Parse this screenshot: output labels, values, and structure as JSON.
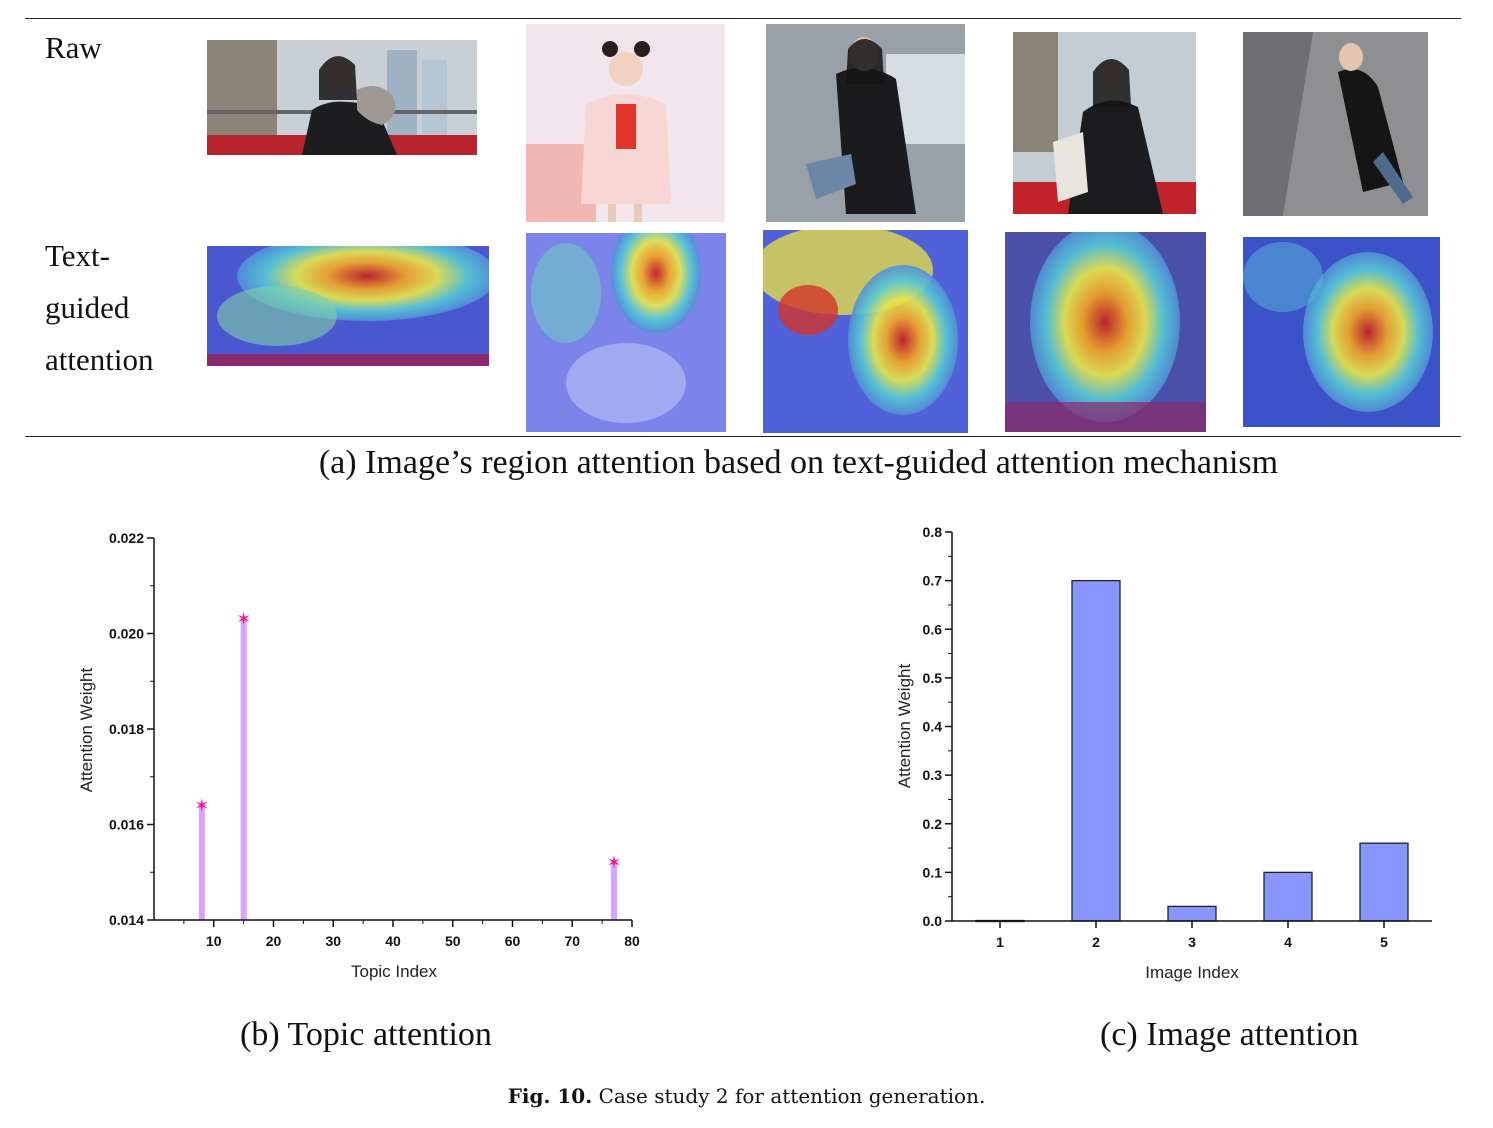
{
  "figure": {
    "row_labels": {
      "raw": "Raw",
      "attention": [
        "Text-",
        "guided",
        "attention"
      ]
    },
    "panel_a_caption": "(a) Image’s region attention based on text-guided attention mechanism",
    "panel_b_caption": "(b) Topic attention",
    "panel_c_caption": "(c) Image attention",
    "fig_number": "Fig. 10.",
    "fig_caption": "Case study 2 for attention generation."
  },
  "colors": {
    "stem": "#d6a4ff",
    "marker": "#ff1493",
    "bar": "#8a96ff"
  },
  "chart_data": [
    {
      "type": "scatter",
      "style": "stem",
      "xlabel": "Topic Index",
      "ylabel": "Attention Weight",
      "xlim": [
        0,
        80
      ],
      "ylim": [
        0.014,
        0.022
      ],
      "xticks": [
        10,
        20,
        30,
        40,
        50,
        60,
        70,
        80
      ],
      "yticks": [
        "0.014",
        "0.016",
        "0.018",
        "0.020",
        "0.022"
      ],
      "points": [
        {
          "x": 8,
          "y": 0.0164
        },
        {
          "x": 15,
          "y": 0.0203
        },
        {
          "x": 77,
          "y": 0.0152
        }
      ]
    },
    {
      "type": "bar",
      "xlabel": "Image Index",
      "ylabel": "Attention Weight",
      "ylim": [
        0,
        0.8
      ],
      "categories": [
        "1",
        "2",
        "3",
        "4",
        "5"
      ],
      "yticks": [
        "0.0",
        "0.1",
        "0.2",
        "0.3",
        "0.4",
        "0.5",
        "0.6",
        "0.7",
        "0.8"
      ],
      "values": [
        0.001,
        0.7,
        0.03,
        0.1,
        0.16
      ]
    }
  ]
}
